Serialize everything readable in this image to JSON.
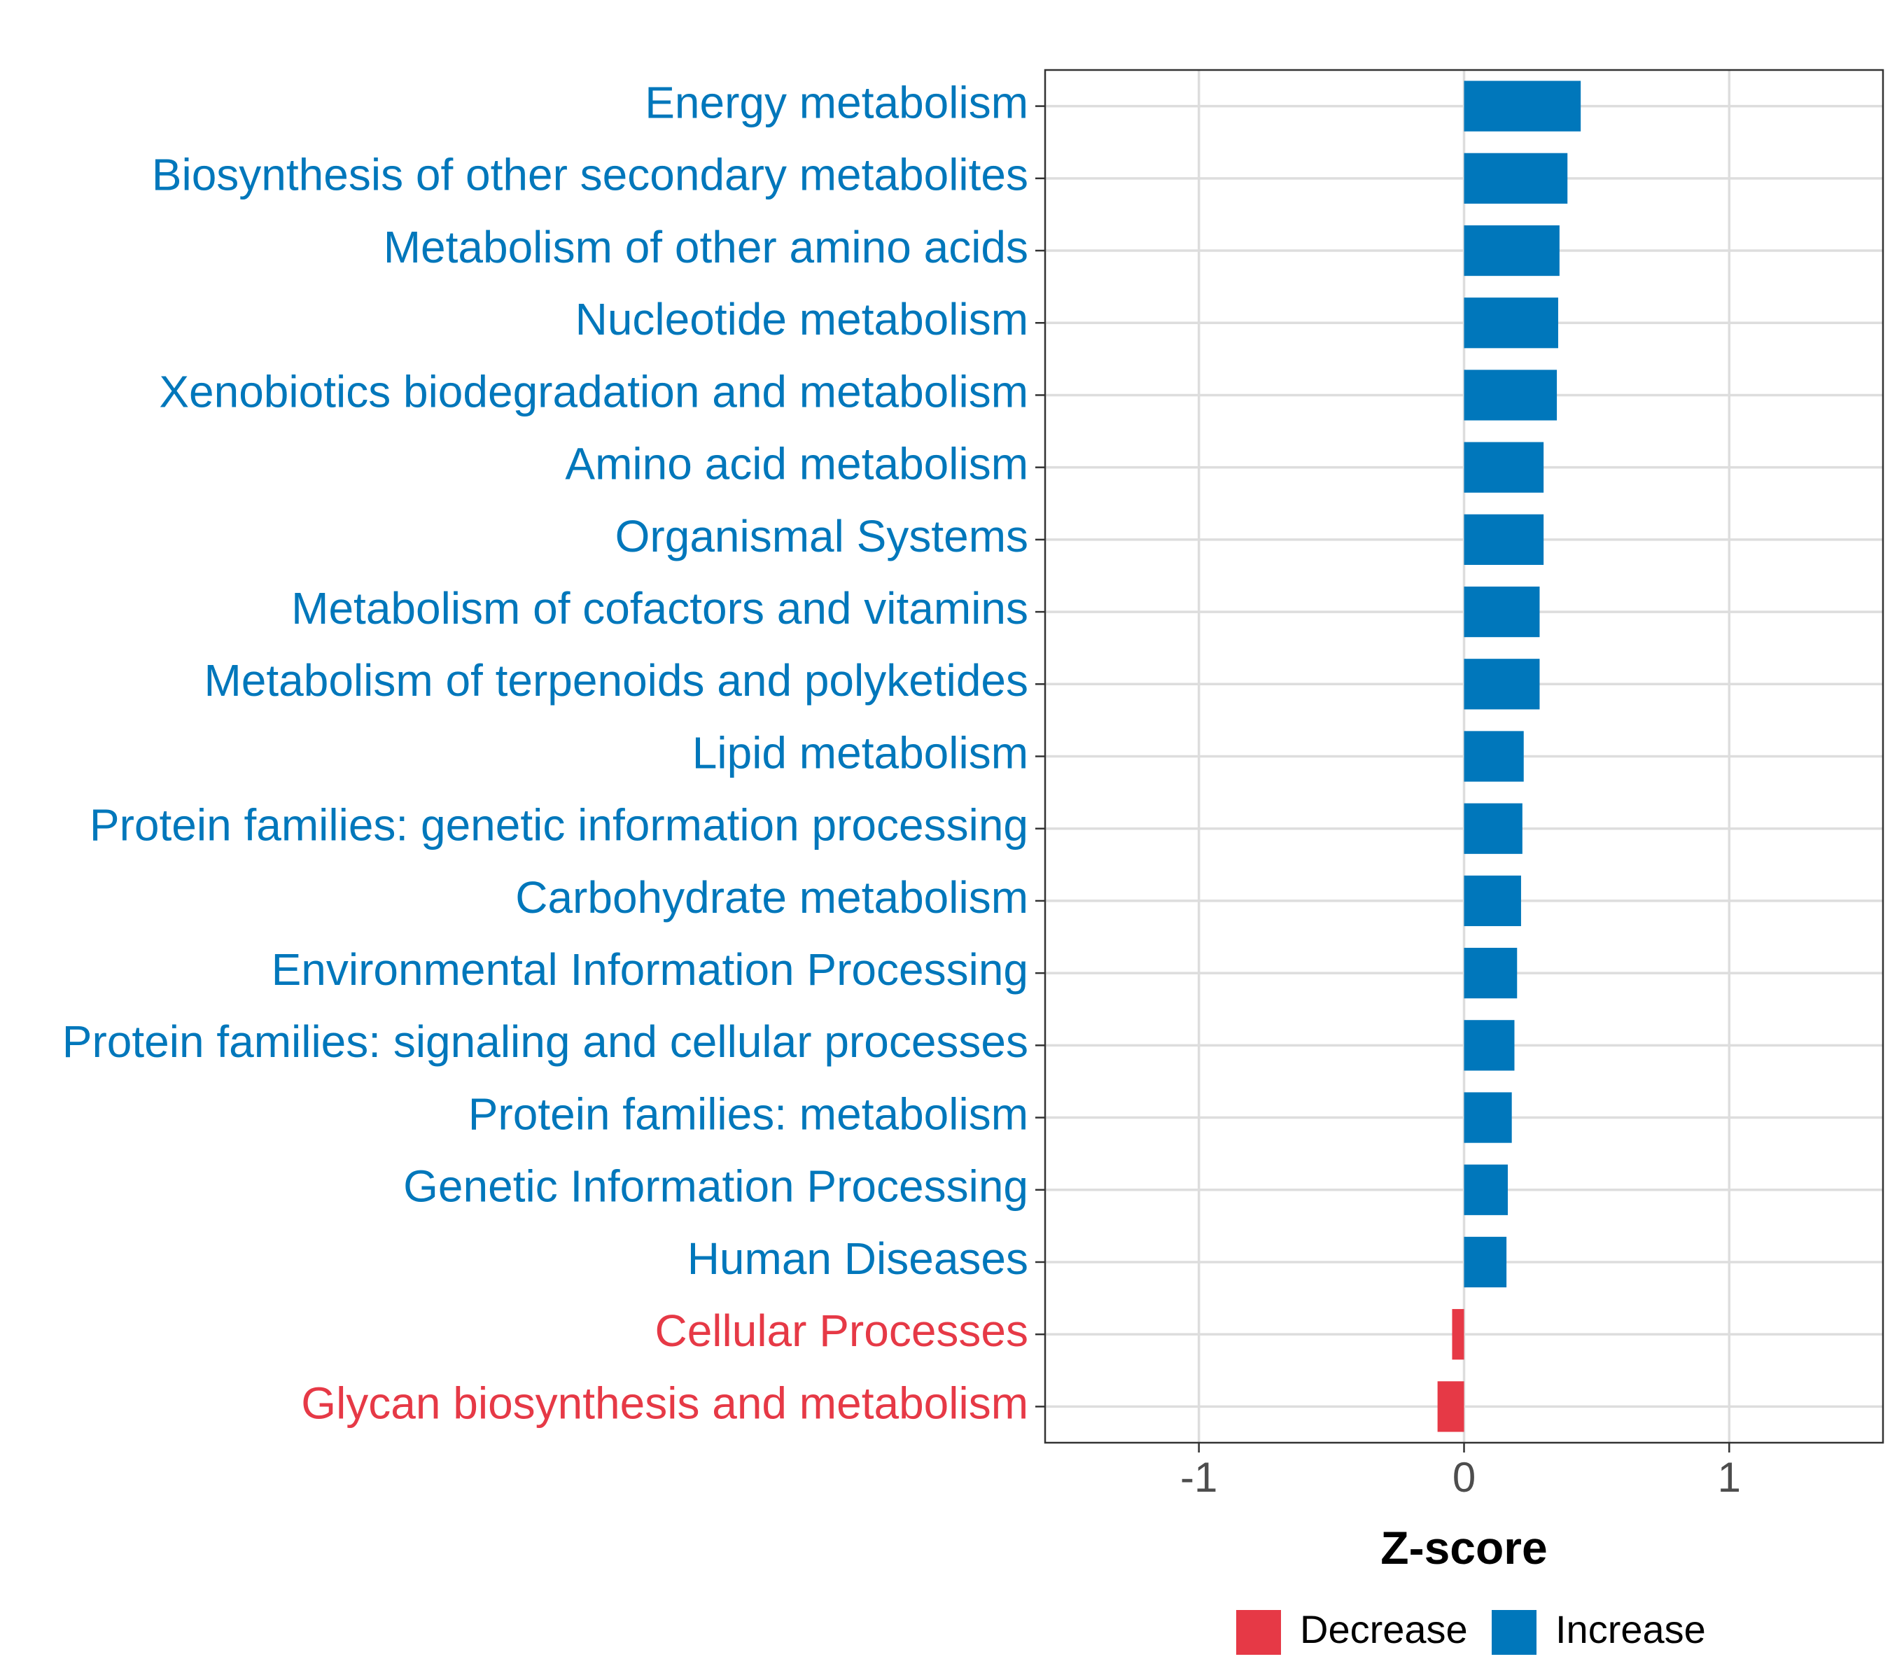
{
  "chart_data": {
    "type": "bar",
    "orientation": "horizontal",
    "title": "",
    "xlabel": "Z-score",
    "ylabel": "",
    "xlim": [
      -1.58,
      1.58
    ],
    "xticks": [
      -1,
      0,
      1
    ],
    "xtick_labels": [
      "-1",
      "0",
      "1"
    ],
    "grid": true,
    "legend_position": "bottom",
    "colors": {
      "Decrease": "#E63946",
      "Increase": "#0077BB"
    },
    "legend": [
      {
        "label": "Decrease",
        "color": "#E63946"
      },
      {
        "label": "Increase",
        "color": "#0077BB"
      }
    ],
    "categories": [
      "Energy metabolism",
      "Biosynthesis of other secondary metabolites",
      "Metabolism of other amino acids",
      "Nucleotide metabolism",
      "Xenobiotics biodegradation and metabolism",
      "Amino acid metabolism",
      "Organismal Systems",
      "Metabolism of cofactors and vitamins",
      "Metabolism of terpenoids and polyketides",
      "Lipid metabolism",
      "Protein families: genetic information processing",
      "Carbohydrate metabolism",
      "Environmental Information Processing",
      "Protein families: signaling and cellular processes",
      "Protein families: metabolism",
      "Genetic Information Processing",
      "Human Diseases",
      "Cellular Processes",
      "Glycan biosynthesis and metabolism"
    ],
    "values": [
      0.44,
      0.39,
      0.36,
      0.355,
      0.35,
      0.3,
      0.3,
      0.285,
      0.285,
      0.225,
      0.22,
      0.215,
      0.2,
      0.19,
      0.18,
      0.165,
      0.16,
      -0.045,
      -0.1
    ],
    "groups": [
      "Increase",
      "Increase",
      "Increase",
      "Increase",
      "Increase",
      "Increase",
      "Increase",
      "Increase",
      "Increase",
      "Increase",
      "Increase",
      "Increase",
      "Increase",
      "Increase",
      "Increase",
      "Increase",
      "Increase",
      "Decrease",
      "Decrease"
    ]
  }
}
